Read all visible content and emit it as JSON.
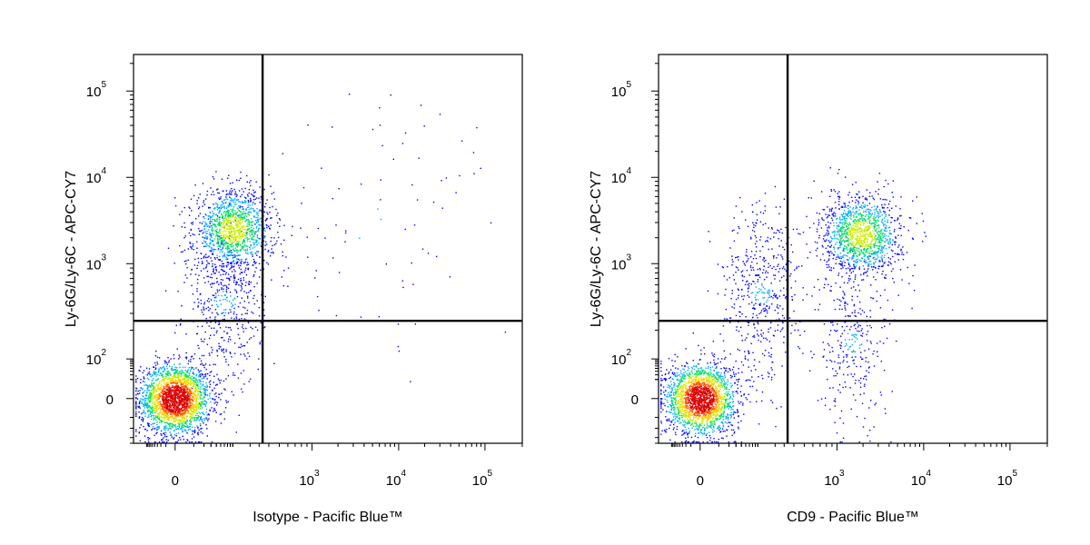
{
  "chart_data": [
    {
      "type": "scatter",
      "panel": "left",
      "xlabel": "Isotype - Pacific Blue™",
      "ylabel": "Ly-6G/Ly-6C - APC-CY7",
      "x_scale": "biexponential",
      "y_scale": "biexponential",
      "xlim": [
        -300,
        200000
      ],
      "ylim": [
        -150,
        250000
      ],
      "x_ticks": [
        {
          "value": 0,
          "base": "0",
          "exp": ""
        },
        {
          "value": 1000,
          "base": "10",
          "exp": "3"
        },
        {
          "value": 10000,
          "base": "10",
          "exp": "4"
        },
        {
          "value": 100000,
          "base": "10",
          "exp": "5"
        }
      ],
      "y_ticks": [
        {
          "value": 0,
          "base": "0",
          "exp": ""
        },
        {
          "value": 100,
          "base": "10",
          "exp": "2"
        },
        {
          "value": 1000,
          "base": "10",
          "exp": "3"
        },
        {
          "value": 10000,
          "base": "10",
          "exp": "4"
        },
        {
          "value": 100000,
          "base": "10",
          "exp": "5"
        }
      ],
      "quadrant_gate": {
        "x": 350,
        "y": 250
      },
      "populations": [
        {
          "center": [
            0,
            0
          ],
          "spread": "dense",
          "fraction": 0.55
        },
        {
          "center": [
            90,
            2500
          ],
          "spread": "medium",
          "fraction": 0.3
        },
        {
          "center": [
            60,
            400
          ],
          "spread": "diffuse",
          "fraction": 0.13
        },
        {
          "center": [
            5000,
            3000
          ],
          "spread": "sparse",
          "fraction": 0.02
        }
      ],
      "grid": false,
      "legend": "none"
    },
    {
      "type": "scatter",
      "panel": "right",
      "xlabel": "CD9 - Pacific Blue™",
      "ylabel": "Ly-6G/Ly-6C - APC-CY7",
      "x_scale": "biexponential",
      "y_scale": "biexponential",
      "xlim": [
        -300,
        200000
      ],
      "ylim": [
        -150,
        250000
      ],
      "x_ticks": [
        {
          "value": 0,
          "base": "0",
          "exp": ""
        },
        {
          "value": 1000,
          "base": "10",
          "exp": "3"
        },
        {
          "value": 10000,
          "base": "10",
          "exp": "4"
        },
        {
          "value": 100000,
          "base": "10",
          "exp": "5"
        }
      ],
      "y_ticks": [
        {
          "value": 0,
          "base": "0",
          "exp": ""
        },
        {
          "value": 100,
          "base": "10",
          "exp": "2"
        },
        {
          "value": 1000,
          "base": "10",
          "exp": "3"
        },
        {
          "value": 10000,
          "base": "10",
          "exp": "4"
        },
        {
          "value": 100000,
          "base": "10",
          "exp": "5"
        }
      ],
      "quadrant_gate": {
        "x": 350,
        "y": 250
      },
      "populations": [
        {
          "center": [
            0,
            0
          ],
          "spread": "dense",
          "fraction": 0.5
        },
        {
          "center": [
            1900,
            2200
          ],
          "spread": "medium",
          "fraction": 0.3
        },
        {
          "center": [
            100,
            500
          ],
          "spread": "diffuse",
          "fraction": 0.12
        },
        {
          "center": [
            1500,
            150
          ],
          "spread": "diffuse",
          "fraction": 0.08
        }
      ],
      "grid": false,
      "legend": "none"
    }
  ],
  "colormap": [
    "#0000ff",
    "#00aaff",
    "#00dd66",
    "#ccee00",
    "#ffcc00",
    "#ff5500",
    "#dd0000"
  ]
}
